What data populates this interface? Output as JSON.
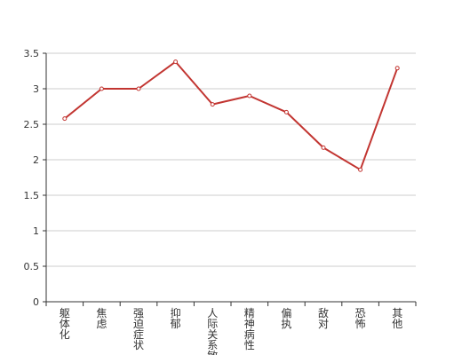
{
  "chart_data": {
    "type": "line",
    "categories": [
      "躯体化",
      "焦虑",
      "强迫症状",
      "抑郁",
      "人际关系敏感",
      "精神病性",
      "偏执",
      "敌对",
      "恐怖",
      "其他"
    ],
    "series": [
      {
        "values": [
          2.58,
          3.0,
          3.0,
          3.38,
          2.78,
          2.9,
          2.67,
          2.17,
          1.86,
          3.29
        ]
      }
    ],
    "ylim": [
      0,
      3.5
    ],
    "yticks": [
      "0",
      "0.5",
      "1",
      "1.5",
      "2",
      "2.5",
      "3",
      "3.5"
    ],
    "grid": true,
    "colors": {
      "line": "#c23531",
      "point_fill": "#ffffff",
      "grid": "#cccccc",
      "axis": "#333333"
    }
  }
}
